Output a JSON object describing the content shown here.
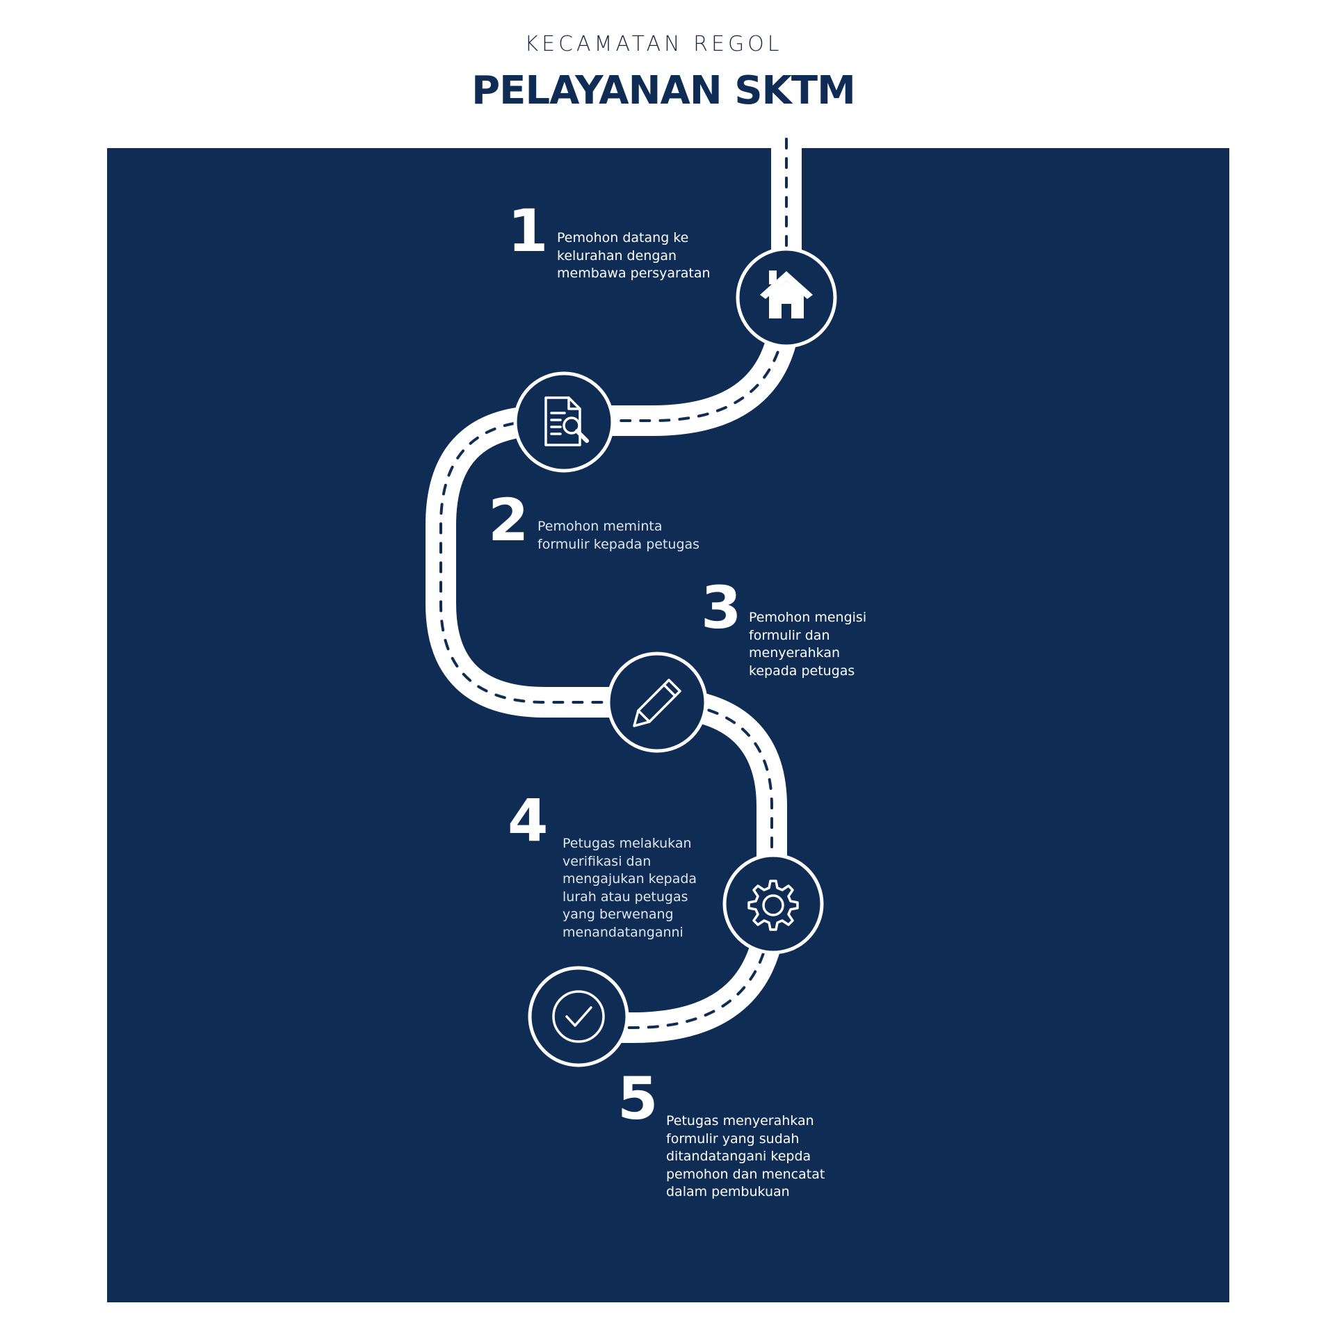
{
  "header": {
    "subtitle": "KECAMATAN REGOL",
    "title": "PELAYANAN SKTM"
  },
  "colors": {
    "navy": "#0e2c54",
    "white": "#ffffff"
  },
  "steps": [
    {
      "number": "1",
      "icon": "house-icon",
      "text": "Pemohon datang ke\nkelurahan dengan\nmembawa persyaratan"
    },
    {
      "number": "2",
      "icon": "document-search-icon",
      "text": "Pemohon meminta\nformulir kepada petugas"
    },
    {
      "number": "3",
      "icon": "pencil-icon",
      "text": "Pemohon mengisi\nformulir dan\nmenyerahkan\nkepada petugas"
    },
    {
      "number": "4",
      "icon": "gear-icon",
      "text": "Petugas melakukan\nverifikasi dan\nmengajukan kepada\nlurah atau petugas\nyang berwenang\nmenandatanganni"
    },
    {
      "number": "5",
      "icon": "check-circle-icon",
      "text": "Petugas menyerahkan\nformulir yang sudah\nditandatangani kepda\npemohon dan mencatat\ndalam pembukuan"
    }
  ]
}
